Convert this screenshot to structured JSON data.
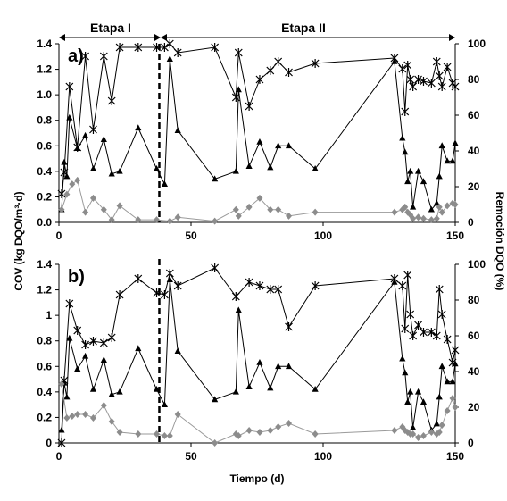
{
  "figure": {
    "stage_labels": [
      "Etapa I",
      "Etapa II"
    ],
    "y_left_label": "COV (kg DQO/m³·d)",
    "y_right_label": "Remoción DQO (%)",
    "x_label": "Tiempo (d)",
    "stage_boundary_day": 38
  },
  "chart_data": [
    {
      "type": "line",
      "panel_label": "a)",
      "xlim": [
        0,
        150
      ],
      "ylim_left": [
        0,
        1.4
      ],
      "ylim_right": [
        0,
        100
      ],
      "x_ticks": [
        "0",
        "50",
        "100",
        "150"
      ],
      "y_left_ticks": [
        "0.0",
        "0.2",
        "0.4",
        "0.6",
        "0.8",
        "1.0",
        "1.2",
        "1.4"
      ],
      "y_right_ticks": [
        "0",
        "20",
        "40",
        "60",
        "80",
        "100"
      ],
      "series": [
        {
          "color": "#000000",
          "marker": "star",
          "axis": "right",
          "x": [
            1,
            2,
            4,
            7,
            10,
            13,
            17,
            20,
            23,
            30,
            37,
            40,
            42,
            45,
            59,
            67,
            68,
            72,
            76,
            80,
            83,
            87,
            97,
            127,
            130,
            131,
            132,
            133,
            134,
            136,
            138,
            141,
            143,
            144,
            145,
            147,
            149,
            150
          ],
          "y": [
            16,
            28,
            76,
            42,
            93,
            52,
            93,
            68,
            98,
            98,
            98,
            98,
            100,
            95,
            98,
            70,
            95,
            65,
            80,
            85,
            90,
            84,
            89,
            92,
            86,
            62,
            88,
            80,
            76,
            80,
            79,
            78,
            90,
            82,
            76,
            87,
            78,
            76
          ]
        },
        {
          "color": "#000000",
          "marker": "triangle",
          "axis": "left",
          "x": [
            1,
            2,
            3,
            4,
            7,
            10,
            13,
            17,
            20,
            23,
            30,
            37,
            40,
            42,
            45,
            59,
            67,
            68,
            72,
            76,
            80,
            83,
            87,
            97,
            127,
            130,
            131,
            132,
            133,
            134,
            136,
            138,
            141,
            143,
            144,
            145,
            147,
            149,
            150
          ],
          "y": [
            0.1,
            0.47,
            0.36,
            0.82,
            0.58,
            0.68,
            0.42,
            0.65,
            0.38,
            0.4,
            0.74,
            0.42,
            0.3,
            1.28,
            0.72,
            0.34,
            0.4,
            1.04,
            0.44,
            0.63,
            0.43,
            0.6,
            0.6,
            0.42,
            1.26,
            0.66,
            0.55,
            0.32,
            0.4,
            0.12,
            0.4,
            0.32,
            0.1,
            0.15,
            0.36,
            0.6,
            0.48,
            0.48,
            0.62
          ]
        },
        {
          "color": "#8c8c8c",
          "marker": "diamond",
          "axis": "left",
          "x": [
            1,
            3,
            5,
            7,
            10,
            13,
            17,
            20,
            23,
            30,
            37,
            42,
            45,
            59,
            67,
            68,
            72,
            76,
            80,
            83,
            87,
            97,
            127,
            130,
            131,
            132,
            133,
            134,
            136,
            138,
            141,
            143,
            144,
            145,
            147,
            149,
            150
          ],
          "y": [
            0.1,
            0.22,
            0.3,
            0.33,
            0.08,
            0.19,
            0.1,
            0.02,
            0.13,
            0.02,
            0.02,
            0.01,
            0.04,
            0.01,
            0.1,
            0.05,
            0.12,
            0.19,
            0.1,
            0.1,
            0.05,
            0.08,
            0.08,
            0.1,
            0.12,
            0.08,
            0.06,
            0.03,
            0.04,
            0.03,
            0.02,
            0.03,
            0.12,
            0.08,
            0.13,
            0.15,
            0.14
          ]
        }
      ]
    },
    {
      "type": "line",
      "panel_label": "b)",
      "xlim": [
        0,
        150
      ],
      "ylim_left": [
        0,
        1.4
      ],
      "ylim_right": [
        0,
        100
      ],
      "x_ticks": [
        "0",
        "50",
        "100",
        "150"
      ],
      "y_left_ticks": [
        "0",
        "0.2",
        "0.4",
        "0.6",
        "0.8",
        "1",
        "1.2",
        "1.4"
      ],
      "y_right_ticks": [
        "0",
        "20",
        "40",
        "60",
        "80",
        "100"
      ],
      "series": [
        {
          "color": "#000000",
          "marker": "star",
          "axis": "right",
          "x": [
            1,
            2,
            4,
            7,
            10,
            13,
            17,
            20,
            23,
            30,
            37,
            40,
            42,
            45,
            59,
            67,
            72,
            76,
            80,
            83,
            87,
            97,
            127,
            130,
            131,
            132,
            133,
            134,
            136,
            138,
            141,
            143,
            144,
            145,
            147,
            149,
            150
          ],
          "y": [
            0,
            35,
            78,
            63,
            55,
            57,
            56,
            59,
            83,
            92,
            84,
            83,
            95,
            88,
            98,
            82,
            90,
            88,
            86,
            86,
            65,
            88,
            92,
            88,
            64,
            94,
            72,
            60,
            66,
            62,
            62,
            60,
            86,
            72,
            58,
            45,
            52
          ]
        },
        {
          "color": "#000000",
          "marker": "triangle",
          "axis": "left",
          "x": [
            1,
            2,
            3,
            4,
            7,
            10,
            13,
            17,
            20,
            23,
            30,
            37,
            40,
            42,
            45,
            59,
            67,
            68,
            72,
            76,
            80,
            83,
            87,
            97,
            127,
            130,
            131,
            132,
            133,
            134,
            136,
            138,
            141,
            143,
            144,
            145,
            147,
            149,
            150
          ],
          "y": [
            0.1,
            0.47,
            0.36,
            0.82,
            0.58,
            0.68,
            0.42,
            0.65,
            0.38,
            0.4,
            0.74,
            0.42,
            0.3,
            1.28,
            0.72,
            0.34,
            0.4,
            1.04,
            0.44,
            0.63,
            0.43,
            0.6,
            0.6,
            0.42,
            1.26,
            0.66,
            0.55,
            0.32,
            0.4,
            0.12,
            0.4,
            0.32,
            0.1,
            0.15,
            0.36,
            0.6,
            0.48,
            0.48,
            0.62
          ]
        },
        {
          "color": "#8c8c8c",
          "marker": "diamond",
          "axis": "right",
          "x": [
            1,
            3,
            5,
            7,
            10,
            13,
            17,
            20,
            23,
            30,
            37,
            40,
            42,
            45,
            59,
            67,
            68,
            72,
            76,
            80,
            83,
            87,
            97,
            127,
            130,
            131,
            132,
            133,
            134,
            136,
            138,
            141,
            143,
            144,
            145,
            147,
            149,
            150
          ],
          "y": [
            33,
            14,
            15,
            16,
            16,
            14,
            21,
            12,
            6,
            5,
            5,
            4,
            4,
            16,
            0,
            5,
            4,
            7,
            6,
            7,
            9,
            11,
            5,
            7,
            9,
            7,
            6,
            5,
            5,
            3,
            4,
            6,
            5,
            6,
            10,
            18,
            25,
            20
          ]
        }
      ]
    }
  ]
}
